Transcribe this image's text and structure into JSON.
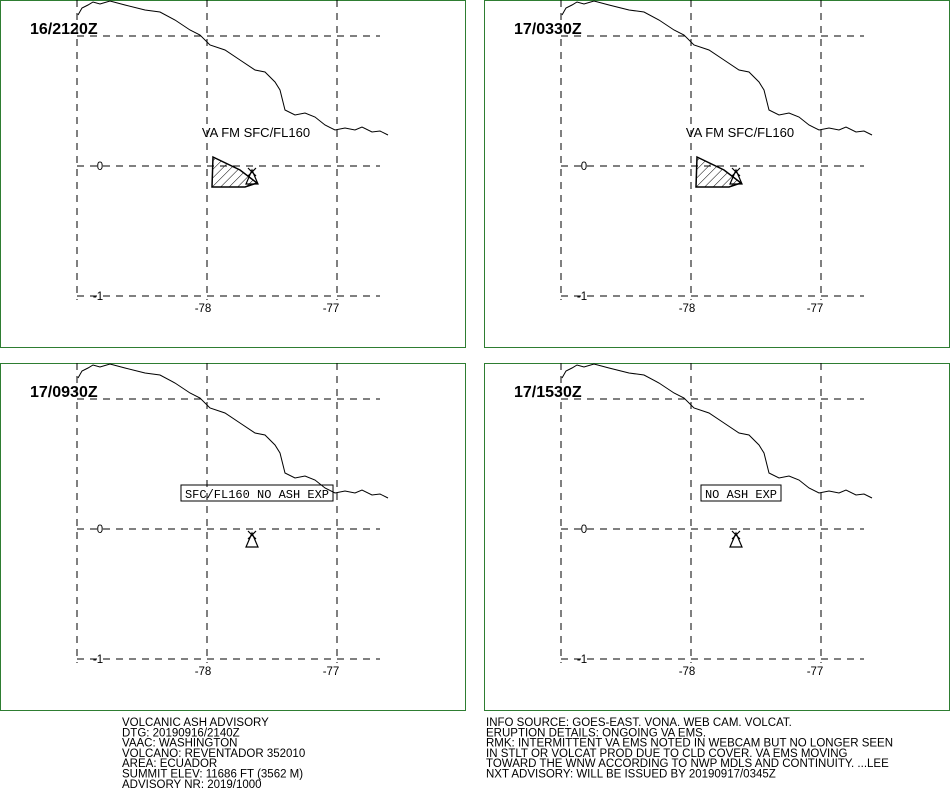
{
  "panels": [
    {
      "time": "16/2120Z",
      "label": "VA FM SFC/FL160",
      "ash": true
    },
    {
      "time": "17/0330Z",
      "label": "VA FM SFC/FL160",
      "ash": true
    },
    {
      "time": "17/0930Z",
      "label": "SFC/FL160 NO ASH EXP",
      "ash": false
    },
    {
      "time": "17/1530Z",
      "label": "NO ASH EXP",
      "ash": false
    }
  ],
  "grid_labels": {
    "lat": [
      "0",
      "-1"
    ],
    "lon": [
      "-78",
      "-77"
    ]
  },
  "left_text": [
    "VOLCANIC ASH ADVISORY",
    "DTG: 20190916/2140Z",
    "VAAC: WASHINGTON",
    "VOLCANO: REVENTADOR 352010",
    "AREA: ECUADOR",
    "SUMMIT ELEV: 11686 FT (3562 M)",
    "ADVISORY NR: 2019/1000"
  ],
  "right_text": [
    "INFO SOURCE: GOES-EAST. VONA. WEB CAM. VOLCAT.",
    "ERUPTION DETAILS: ONGOING VA EMS.",
    "RMK: INTERMITTENT VA EMS NOTED IN WEBCAM BUT NO LONGER SEEN",
    "IN STLT OR VOLCAT PROD DUE TO CLD COVER. VA EMS MOVING",
    "TOWARD THE WNW ACCORDING TO NWP MDLS AND CONTINUITY. ...LEE",
    "NXT ADVISORY: WILL BE ISSUED BY 20190917/0345Z"
  ]
}
